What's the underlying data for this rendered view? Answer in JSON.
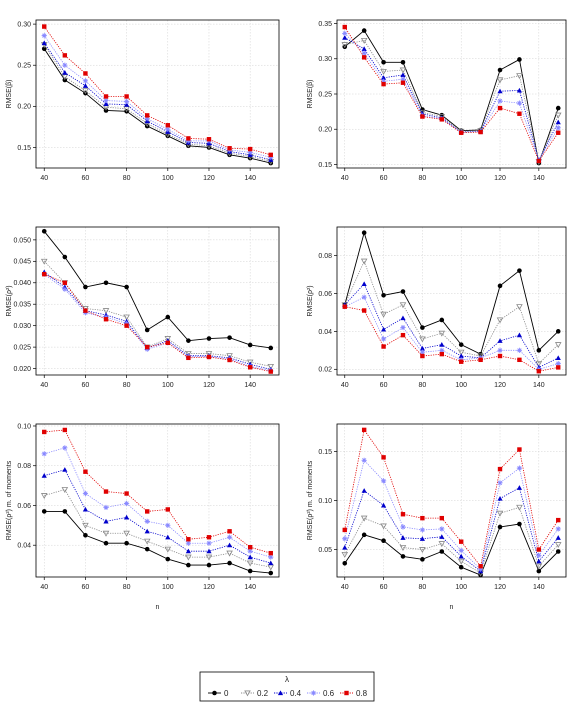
{
  "chart_data": [
    {
      "type": "line",
      "panel": "top-left",
      "ylabel": "RMSE(β)",
      "xlabel": "",
      "x": [
        40,
        50,
        60,
        70,
        80,
        90,
        100,
        110,
        120,
        130,
        140,
        150
      ],
      "xticks": [
        40,
        60,
        80,
        100,
        120,
        140
      ],
      "ylim": [
        0.125,
        0.305
      ],
      "yticks": [
        0.15,
        0.2,
        0.25,
        0.3
      ],
      "ytick_labels": [
        "0.15",
        "0.20",
        "0.25",
        "0.30"
      ],
      "grid": true,
      "series": [
        {
          "name": "0",
          "values": [
            0.27,
            0.232,
            0.216,
            0.195,
            0.194,
            0.176,
            0.164,
            0.152,
            0.15,
            0.141,
            0.137,
            0.131
          ]
        },
        {
          "name": "0.2",
          "values": [
            0.275,
            0.236,
            0.219,
            0.199,
            0.197,
            0.179,
            0.166,
            0.154,
            0.152,
            0.143,
            0.139,
            0.133
          ]
        },
        {
          "name": "0.4",
          "values": [
            0.277,
            0.241,
            0.225,
            0.203,
            0.202,
            0.182,
            0.169,
            0.156,
            0.155,
            0.145,
            0.141,
            0.135
          ]
        },
        {
          "name": "0.6",
          "values": [
            0.286,
            0.25,
            0.231,
            0.207,
            0.206,
            0.185,
            0.172,
            0.158,
            0.158,
            0.147,
            0.144,
            0.138
          ]
        },
        {
          "name": "0.8",
          "values": [
            0.297,
            0.262,
            0.24,
            0.212,
            0.212,
            0.189,
            0.177,
            0.161,
            0.16,
            0.149,
            0.148,
            0.141
          ]
        }
      ]
    },
    {
      "type": "line",
      "panel": "top-right",
      "ylabel": "RMSE(β)",
      "xlabel": "",
      "x": [
        40,
        50,
        60,
        70,
        80,
        90,
        100,
        110,
        120,
        130,
        140,
        150
      ],
      "xticks": [
        40,
        60,
        80,
        100,
        120,
        140
      ],
      "ylim": [
        0.145,
        0.355
      ],
      "yticks": [
        0.15,
        0.2,
        0.25,
        0.3,
        0.35
      ],
      "ytick_labels": [
        "0.15",
        "0.20",
        "0.25",
        "0.30",
        "0.35"
      ],
      "grid": true,
      "series": [
        {
          "name": "0",
          "values": [
            0.317,
            0.34,
            0.295,
            0.295,
            0.228,
            0.22,
            0.198,
            0.199,
            0.284,
            0.299,
            0.152,
            0.23
          ]
        },
        {
          "name": "0.2",
          "values": [
            0.32,
            0.326,
            0.282,
            0.284,
            0.224,
            0.218,
            0.197,
            0.198,
            0.27,
            0.276,
            0.154,
            0.22
          ]
        },
        {
          "name": "0.4",
          "values": [
            0.33,
            0.314,
            0.273,
            0.277,
            0.222,
            0.216,
            0.196,
            0.197,
            0.254,
            0.255,
            0.156,
            0.21
          ]
        },
        {
          "name": "0.6",
          "values": [
            0.336,
            0.308,
            0.268,
            0.271,
            0.219,
            0.215,
            0.196,
            0.197,
            0.24,
            0.237,
            0.156,
            0.202
          ]
        },
        {
          "name": "0.8",
          "values": [
            0.345,
            0.302,
            0.264,
            0.266,
            0.218,
            0.214,
            0.195,
            0.196,
            0.23,
            0.222,
            0.155,
            0.195
          ]
        }
      ]
    },
    {
      "type": "line",
      "panel": "middle-left",
      "ylabel": "RMSE(ρ²)",
      "xlabel": "",
      "x": [
        40,
        50,
        60,
        70,
        80,
        90,
        100,
        110,
        120,
        130,
        140,
        150
      ],
      "xticks": [
        40,
        60,
        80,
        100,
        120,
        140
      ],
      "ylim": [
        0.0185,
        0.053
      ],
      "yticks": [
        0.02,
        0.025,
        0.03,
        0.035,
        0.04,
        0.045,
        0.05
      ],
      "ytick_labels": [
        "0.020",
        "0.025",
        "0.030",
        "0.035",
        "0.040",
        "0.045",
        "0.050"
      ],
      "grid": true,
      "series": [
        {
          "name": "0",
          "values": [
            0.052,
            0.046,
            0.039,
            0.04,
            0.039,
            0.029,
            0.032,
            0.0265,
            0.027,
            0.0272,
            0.0255,
            0.0248
          ]
        },
        {
          "name": "0.2",
          "values": [
            0.045,
            0.04,
            0.034,
            0.0335,
            0.032,
            0.025,
            0.027,
            0.0235,
            0.0235,
            0.023,
            0.0215,
            0.0205
          ]
        },
        {
          "name": "0.4",
          "values": [
            0.0425,
            0.039,
            0.0335,
            0.0325,
            0.031,
            0.0248,
            0.0265,
            0.023,
            0.023,
            0.0225,
            0.021,
            0.0198
          ]
        },
        {
          "name": "0.6",
          "values": [
            0.042,
            0.0385,
            0.033,
            0.032,
            0.0305,
            0.0245,
            0.026,
            0.0228,
            0.0228,
            0.0222,
            0.0205,
            0.0195
          ]
        },
        {
          "name": "0.8",
          "values": [
            0.042,
            0.04,
            0.0335,
            0.0315,
            0.03,
            0.025,
            0.026,
            0.0225,
            0.0227,
            0.022,
            0.0203,
            0.0193
          ]
        }
      ]
    },
    {
      "type": "line",
      "panel": "middle-right",
      "ylabel": "RMSE(ρ²)",
      "xlabel": "",
      "x": [
        40,
        50,
        60,
        70,
        80,
        90,
        100,
        110,
        120,
        130,
        140,
        150
      ],
      "xticks": [
        40,
        60,
        80,
        100,
        120,
        140
      ],
      "ylim": [
        0.017,
        0.095
      ],
      "yticks": [
        0.02,
        0.04,
        0.06,
        0.08
      ],
      "ytick_labels": [
        "0.02",
        "0.04",
        "0.06",
        "0.08"
      ],
      "grid": true,
      "series": [
        {
          "name": "0",
          "values": [
            0.054,
            0.092,
            0.059,
            0.061,
            0.042,
            0.046,
            0.033,
            0.028,
            0.064,
            0.072,
            0.03,
            0.04
          ]
        },
        {
          "name": "0.2",
          "values": [
            0.054,
            0.077,
            0.049,
            0.054,
            0.036,
            0.039,
            0.029,
            0.027,
            0.046,
            0.053,
            0.023,
            0.033
          ]
        },
        {
          "name": "0.4",
          "values": [
            0.054,
            0.065,
            0.041,
            0.047,
            0.031,
            0.033,
            0.027,
            0.026,
            0.035,
            0.038,
            0.021,
            0.026
          ]
        },
        {
          "name": "0.6",
          "values": [
            0.053,
            0.058,
            0.036,
            0.042,
            0.029,
            0.03,
            0.025,
            0.026,
            0.03,
            0.03,
            0.02,
            0.023
          ]
        },
        {
          "name": "0.8",
          "values": [
            0.053,
            0.051,
            0.032,
            0.038,
            0.027,
            0.028,
            0.024,
            0.025,
            0.027,
            0.025,
            0.019,
            0.021
          ]
        }
      ]
    },
    {
      "type": "line",
      "panel": "bottom-left",
      "ylabel": "RMSE(ρ²) m. of moments",
      "xlabel": "n",
      "x": [
        40,
        50,
        60,
        70,
        80,
        90,
        100,
        110,
        120,
        130,
        140,
        150
      ],
      "xticks": [
        40,
        60,
        80,
        100,
        120,
        140
      ],
      "ylim": [
        0.024,
        0.101
      ],
      "yticks": [
        0.04,
        0.06,
        0.08,
        0.1
      ],
      "ytick_labels": [
        "0.04",
        "0.06",
        "0.08",
        "0.10"
      ],
      "grid": true,
      "series": [
        {
          "name": "0",
          "values": [
            0.057,
            0.057,
            0.045,
            0.041,
            0.041,
            0.038,
            0.033,
            0.03,
            0.03,
            0.031,
            0.027,
            0.026
          ]
        },
        {
          "name": "0.2",
          "values": [
            0.065,
            0.068,
            0.05,
            0.046,
            0.046,
            0.042,
            0.038,
            0.034,
            0.034,
            0.036,
            0.031,
            0.029
          ]
        },
        {
          "name": "0.4",
          "values": [
            0.075,
            0.078,
            0.058,
            0.052,
            0.054,
            0.047,
            0.044,
            0.037,
            0.037,
            0.04,
            0.034,
            0.031
          ]
        },
        {
          "name": "0.6",
          "values": [
            0.086,
            0.089,
            0.066,
            0.059,
            0.061,
            0.052,
            0.05,
            0.041,
            0.041,
            0.044,
            0.037,
            0.034
          ]
        },
        {
          "name": "0.8",
          "values": [
            0.097,
            0.098,
            0.077,
            0.067,
            0.066,
            0.057,
            0.058,
            0.043,
            0.044,
            0.047,
            0.039,
            0.036
          ]
        }
      ]
    },
    {
      "type": "line",
      "panel": "bottom-right",
      "ylabel": "RMSE(ρ²) m. of moments",
      "xlabel": "n",
      "x": [
        40,
        50,
        60,
        70,
        80,
        90,
        100,
        110,
        120,
        130,
        140,
        150
      ],
      "xticks": [
        40,
        60,
        80,
        100,
        120,
        140
      ],
      "ylim": [
        0.022,
        0.178
      ],
      "yticks": [
        0.05,
        0.1,
        0.15
      ],
      "ytick_labels": [
        "0.05",
        "0.10",
        "0.15"
      ],
      "grid": true,
      "series": [
        {
          "name": "0",
          "values": [
            0.036,
            0.065,
            0.059,
            0.043,
            0.04,
            0.048,
            0.032,
            0.024,
            0.073,
            0.076,
            0.028,
            0.048
          ]
        },
        {
          "name": "0.2",
          "values": [
            0.045,
            0.082,
            0.074,
            0.052,
            0.05,
            0.056,
            0.038,
            0.026,
            0.087,
            0.093,
            0.033,
            0.055
          ]
        },
        {
          "name": "0.4",
          "values": [
            0.052,
            0.11,
            0.095,
            0.062,
            0.061,
            0.063,
            0.043,
            0.028,
            0.102,
            0.113,
            0.038,
            0.062
          ]
        },
        {
          "name": "0.6",
          "values": [
            0.061,
            0.141,
            0.12,
            0.073,
            0.07,
            0.071,
            0.049,
            0.03,
            0.118,
            0.133,
            0.044,
            0.071
          ]
        },
        {
          "name": "0.8",
          "values": [
            0.07,
            0.172,
            0.144,
            0.086,
            0.082,
            0.082,
            0.058,
            0.033,
            0.132,
            0.152,
            0.05,
            0.08
          ]
        }
      ]
    }
  ],
  "legend": {
    "title": "λ",
    "placement": "bottom-center",
    "entries": [
      {
        "label": "0",
        "color": "#000000",
        "marker": "circle",
        "line": "solid"
      },
      {
        "label": "0.2",
        "color": "#888888",
        "marker": "triangle-down",
        "line": "dotted"
      },
      {
        "label": "0.4",
        "color": "#0000cc",
        "marker": "triangle-up",
        "line": "dotted"
      },
      {
        "label": "0.6",
        "color": "#8888ff",
        "marker": "star",
        "line": "dotted"
      },
      {
        "label": "0.8",
        "color": "#e00000",
        "marker": "square",
        "line": "dotted"
      }
    ]
  }
}
